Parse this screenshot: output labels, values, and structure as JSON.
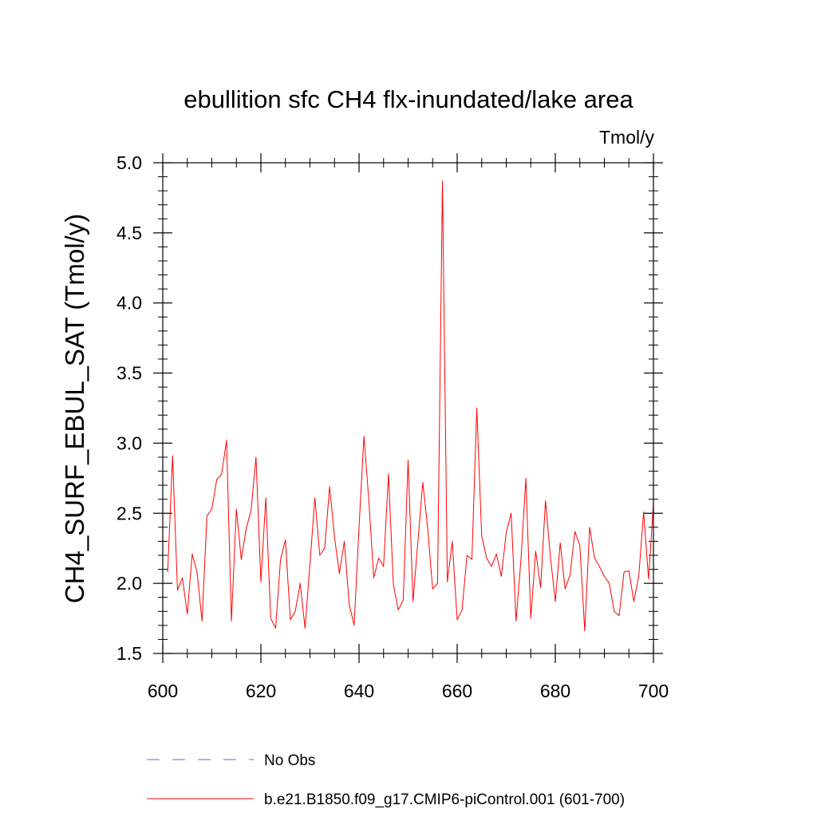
{
  "chart_data": {
    "type": "line",
    "title": "ebullition sfc CH4 flx-inundated/lake area",
    "units_label": "Tmol/y",
    "ylabel": "CH4_SURF_EBUL_SAT  (Tmol/y)",
    "xlabel": "",
    "xlim": [
      600,
      700
    ],
    "ylim": [
      1.5,
      5.0
    ],
    "x_ticks": [
      "600",
      "620",
      "640",
      "660",
      "680",
      "700"
    ],
    "y_ticks": [
      "1.5",
      "2.0",
      "2.5",
      "3.0",
      "3.5",
      "4.0",
      "4.5",
      "5.0"
    ],
    "x_tick_values": [
      600,
      620,
      640,
      660,
      680,
      700
    ],
    "y_tick_values": [
      1.5,
      2.0,
      2.5,
      3.0,
      3.5,
      4.0,
      4.5,
      5.0
    ],
    "series": [
      {
        "name": "b.e21.B1850.f09_g17.CMIP6-piControl.001 (601-700)",
        "color": "#ff0000",
        "x": [
          601,
          602,
          603,
          604,
          605,
          606,
          607,
          608,
          609,
          610,
          611,
          612,
          613,
          614,
          615,
          616,
          617,
          618,
          619,
          620,
          621,
          622,
          623,
          624,
          625,
          626,
          627,
          628,
          629,
          630,
          631,
          632,
          633,
          634,
          635,
          636,
          637,
          638,
          639,
          640,
          641,
          642,
          643,
          644,
          645,
          646,
          647,
          648,
          649,
          650,
          651,
          652,
          653,
          654,
          655,
          656,
          657,
          658,
          659,
          660,
          661,
          662,
          663,
          664,
          665,
          666,
          667,
          668,
          669,
          670,
          671,
          672,
          673,
          674,
          675,
          676,
          677,
          678,
          679,
          680,
          681,
          682,
          683,
          684,
          685,
          686,
          687,
          688,
          689,
          690,
          691,
          692,
          693,
          694,
          695,
          696,
          697,
          698,
          699,
          700
        ],
        "values": [
          2.08,
          2.91,
          1.95,
          2.04,
          1.78,
          2.21,
          2.08,
          1.73,
          2.48,
          2.53,
          2.74,
          2.78,
          3.02,
          1.73,
          2.53,
          2.17,
          2.39,
          2.52,
          2.9,
          2.01,
          2.61,
          1.75,
          1.68,
          2.17,
          2.31,
          1.74,
          1.8,
          2.0,
          1.68,
          2.14,
          2.61,
          2.2,
          2.25,
          2.69,
          2.33,
          2.07,
          2.3,
          1.85,
          1.7,
          2.4,
          3.05,
          2.59,
          2.04,
          2.18,
          2.12,
          2.78,
          1.99,
          1.81,
          1.88,
          2.88,
          1.87,
          2.3,
          2.72,
          2.39,
          1.96,
          2.0,
          4.87,
          2.01,
          2.3,
          1.74,
          1.81,
          2.2,
          2.17,
          3.25,
          2.34,
          2.18,
          2.12,
          2.21,
          2.05,
          2.36,
          2.5,
          1.73,
          2.17,
          2.75,
          1.75,
          2.23,
          1.97,
          2.59,
          2.19,
          1.87,
          2.29,
          1.96,
          2.06,
          2.37,
          2.27,
          1.66,
          2.4,
          2.18,
          2.12,
          2.05,
          2.0,
          1.8,
          1.77,
          2.08,
          2.09,
          1.87,
          2.05,
          2.51,
          2.03,
          2.57
        ]
      }
    ],
    "legend": [
      {
        "label": "No Obs",
        "style": "dashed",
        "color": "#6a6acd"
      },
      {
        "label": "b.e21.B1850.f09_g17.CMIP6-piControl.001 (601-700)",
        "style": "solid",
        "color": "#ff0000"
      }
    ]
  }
}
